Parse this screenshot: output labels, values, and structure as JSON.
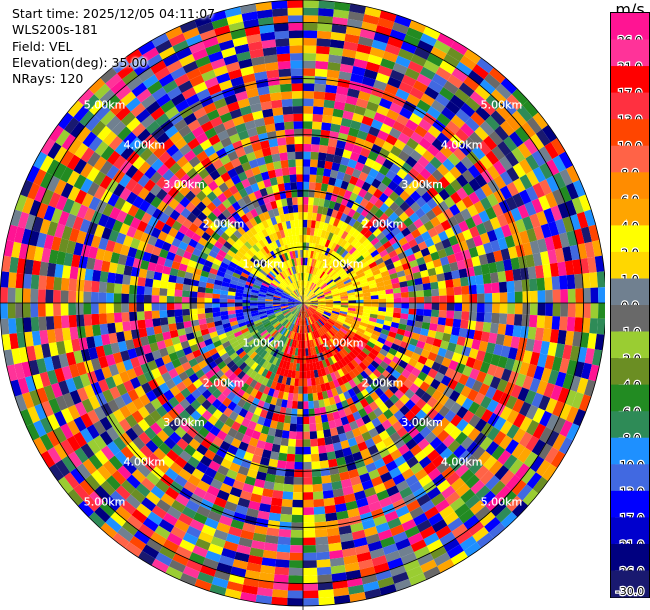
{
  "header": {
    "start_time": "Start time: 2025/12/05 04:11:07",
    "instrument": "WLS200s-181",
    "field": "Field: VEL",
    "elevation": "Elevation(deg): 35.00",
    "nrays": "NRays: 120"
  },
  "chart_data": {
    "type": "heatmap",
    "projection": "polar-ppi",
    "field": "VEL",
    "units": "m/s",
    "elevation_deg": 35.0,
    "n_rays": 120,
    "range_rings_km": [
      1,
      2,
      3,
      4,
      5
    ],
    "range_ring_labels": [
      "1.00km",
      "2.00km",
      "3.00km",
      "4.00km",
      "5.00km"
    ],
    "max_range_km": 5.4,
    "colorbar": {
      "label": "m/s",
      "tick_labels": [
        "26.0",
        "21.0",
        "17.0",
        "13.0",
        "10.0",
        "8.0",
        "6.0",
        "4.0",
        "2.0",
        "1.0",
        "0.0",
        "-1.0",
        "-2.0",
        "-4.0",
        "-6.0",
        "-8.0",
        "-10.0",
        "-13.0",
        "-17.0",
        "-21.0",
        "-26.0",
        "-30.0"
      ],
      "colors": [
        "#ff1493",
        "#ff3399",
        "#ff0000",
        "#ff3040",
        "#ff4500",
        "#ff6347",
        "#ff8c00",
        "#ffa500",
        "#ffff00",
        "#ffd700",
        "#708090",
        "#696969",
        "#9acd32",
        "#6b8e23",
        "#228b22",
        "#2e8b57",
        "#1e90ff",
        "#4169e1",
        "#0000ff",
        "#0000cd",
        "#000080",
        "#191970"
      ]
    }
  }
}
